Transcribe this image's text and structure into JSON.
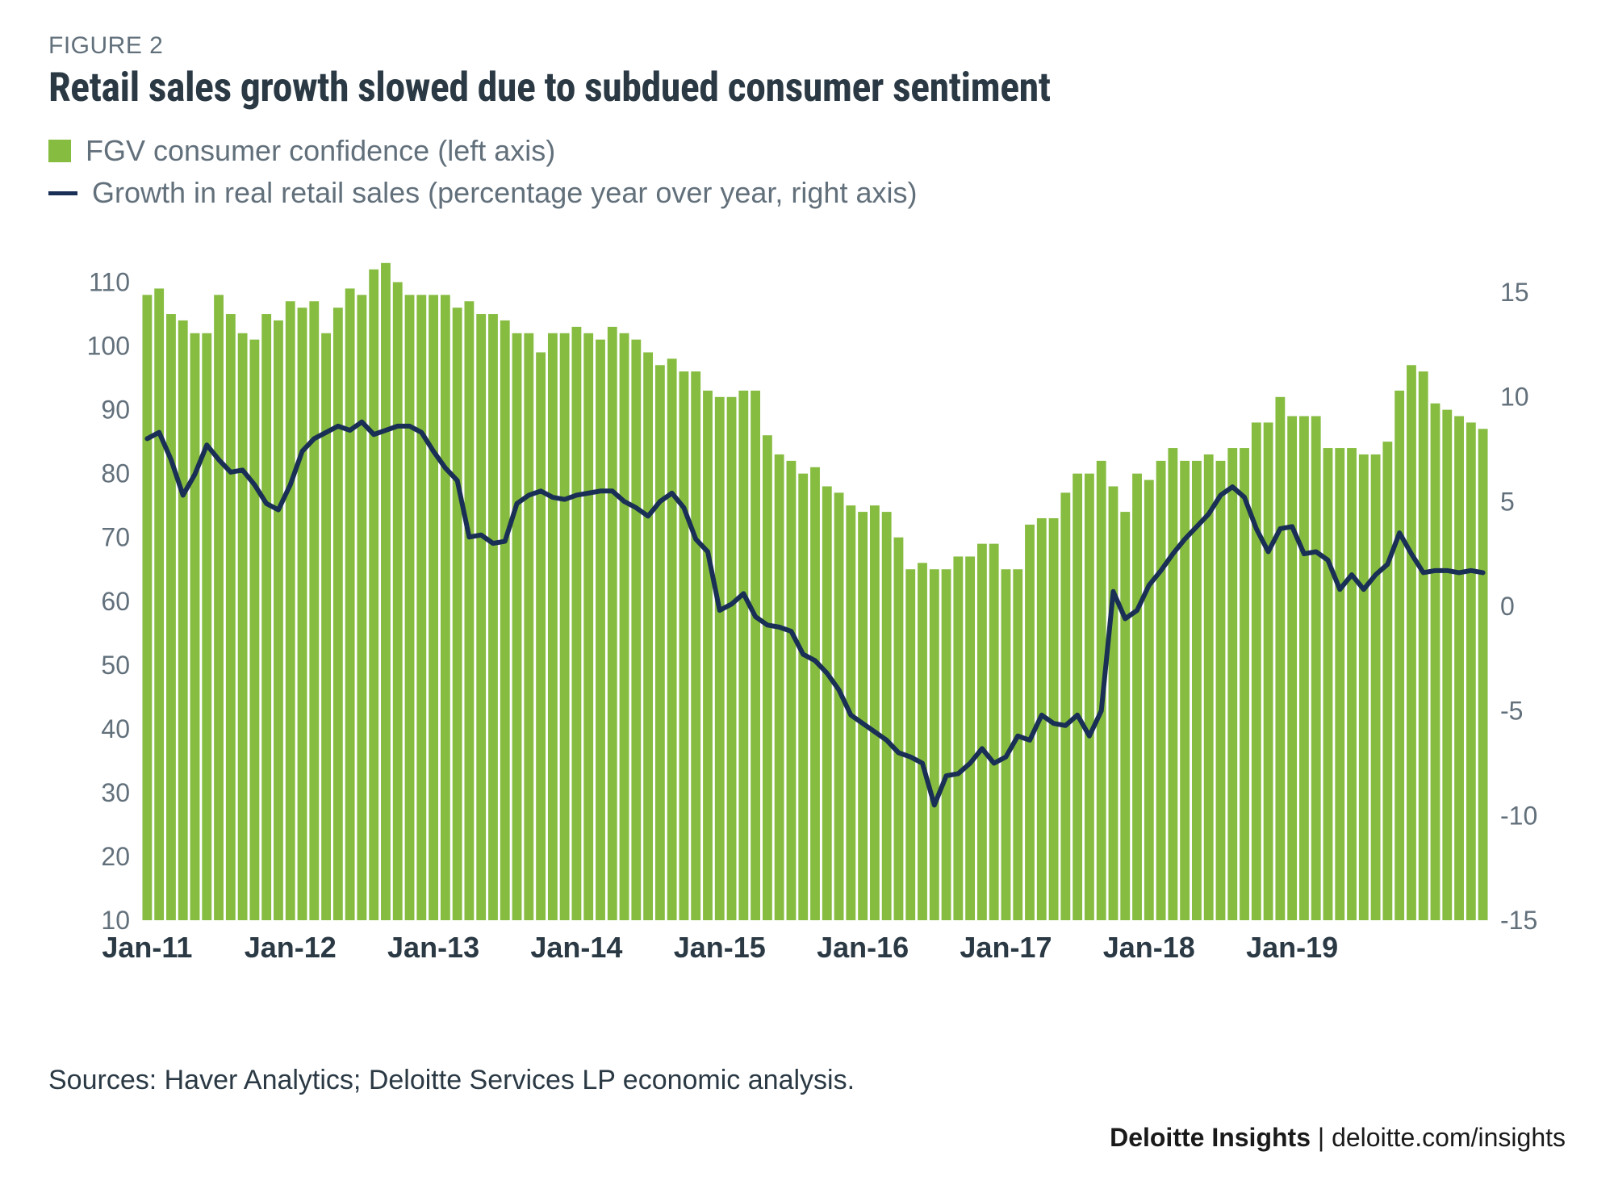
{
  "figure_number": "FIGURE 2",
  "title": "Retail sales growth slowed due to subdued consumer sentiment",
  "legend": {
    "bars": "FGV consumer confidence (left axis)",
    "line": "Growth in real retail sales (percentage year over year, right axis)"
  },
  "sources": "Sources: Haver Analytics; Deloitte Services LP economic analysis.",
  "brand": "Deloitte Insights | deloitte.com/insights",
  "chart": {
    "type": "bar+line dual-axis",
    "background_color": "#ffffff",
    "bar_color": "#86bc40",
    "line_color": "#1a2f55",
    "line_width": 6,
    "axis_label_color": "#62707b",
    "xaxis_label_color": "#2a3944",
    "tick_fontsize": 32,
    "xlabel_fontsize": 36,
    "xlabel_fontweight": "bold",
    "bar_gap_ratio": 0.2,
    "left_axis": {
      "min": 10,
      "max": 115,
      "ticks": [
        10,
        20,
        30,
        40,
        50,
        60,
        70,
        80,
        90,
        100,
        110
      ]
    },
    "right_axis": {
      "min": -15,
      "max": 17,
      "ticks": [
        -15,
        -10,
        -5,
        0,
        5,
        10,
        15
      ]
    },
    "x_ticks": [
      "Jan-11",
      "Jan-12",
      "Jan-13",
      "Jan-14",
      "Jan-15",
      "Jan-16",
      "Jan-17",
      "Jan-18",
      "Jan-19"
    ],
    "x_tick_every": 12,
    "x_tick_offset": 0,
    "bars": [
      108,
      109,
      105,
      104,
      102,
      102,
      108,
      105,
      102,
      101,
      105,
      104,
      107,
      106,
      107,
      102,
      106,
      109,
      108,
      112,
      113,
      110,
      108,
      108,
      108,
      108,
      106,
      107,
      105,
      105,
      104,
      102,
      102,
      99,
      102,
      102,
      103,
      102,
      101,
      103,
      102,
      101,
      99,
      97,
      98,
      96,
      96,
      93,
      92,
      92,
      93,
      93,
      86,
      83,
      82,
      80,
      81,
      78,
      77,
      75,
      74,
      75,
      74,
      70,
      65,
      66,
      65,
      65,
      67,
      67,
      69,
      69,
      65,
      65,
      72,
      73,
      73,
      77,
      80,
      80,
      82,
      78,
      74,
      80,
      79,
      82,
      84,
      82,
      82,
      83,
      82,
      84,
      84,
      88,
      88,
      92,
      89,
      89,
      89,
      84,
      84,
      84,
      83,
      83,
      85,
      93,
      97,
      96,
      91,
      90,
      89,
      88,
      87
    ],
    "line": [
      8,
      8.3,
      7.0,
      5.3,
      6.3,
      7.7,
      7.0,
      6.4,
      6.5,
      5.8,
      4.9,
      4.6,
      5.8,
      7.4,
      8.0,
      8.3,
      8.6,
      8.4,
      8.8,
      8.2,
      8.4,
      8.6,
      8.6,
      8.3,
      7.4,
      6.6,
      6.0,
      3.3,
      3.4,
      3.0,
      3.1,
      4.9,
      5.3,
      5.5,
      5.2,
      5.1,
      5.3,
      5.4,
      5.5,
      5.5,
      5.0,
      4.7,
      4.3,
      5.0,
      5.4,
      4.7,
      3.2,
      2.6,
      -0.2,
      0.1,
      0.6,
      -0.5,
      -0.9,
      -1.0,
      -1.2,
      -2.3,
      -2.6,
      -3.2,
      -4.0,
      -5.2,
      -5.6,
      -6.0,
      -6.4,
      -7.0,
      -7.2,
      -7.5,
      -9.5,
      -8.1,
      -8.0,
      -7.5,
      -6.8,
      -7.5,
      -7.2,
      -6.2,
      -6.4,
      -5.2,
      -5.6,
      -5.7,
      -5.2,
      -6.2,
      -5.0,
      0.7,
      -0.6,
      -0.2,
      1.0,
      1.7,
      2.5,
      3.2,
      3.8,
      4.4,
      5.3,
      5.7,
      5.2,
      3.7,
      2.6,
      3.7,
      3.8,
      2.5,
      2.6,
      2.2,
      0.8,
      1.5,
      0.8,
      1.5,
      2.0,
      3.5,
      2.5,
      1.6,
      1.7,
      1.7,
      1.6,
      1.7,
      1.6
    ]
  }
}
